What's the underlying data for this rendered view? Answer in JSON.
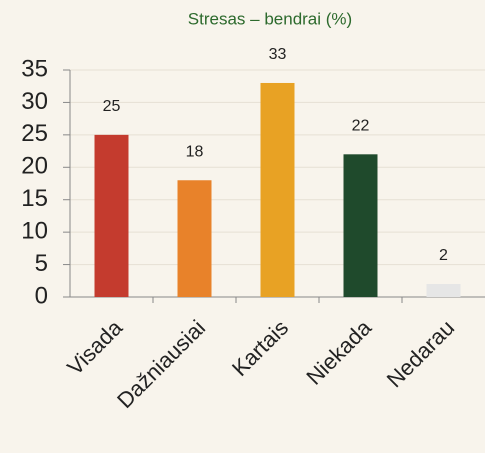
{
  "chart_data": {
    "type": "bar",
    "title": "Stresas – bendrai (%)",
    "categories": [
      "Visada",
      "Dažniausiai",
      "Kartais",
      "Niekada",
      "Nedarau"
    ],
    "values": [
      25,
      18,
      33,
      22,
      2
    ],
    "colors": [
      "#c43b2e",
      "#e8822a",
      "#e8a224",
      "#1f4a2c",
      "#e6e6e6"
    ],
    "ylim": [
      0,
      35
    ],
    "yticks": [
      0,
      5,
      10,
      15,
      20,
      25,
      30,
      35
    ],
    "grid": true
  }
}
